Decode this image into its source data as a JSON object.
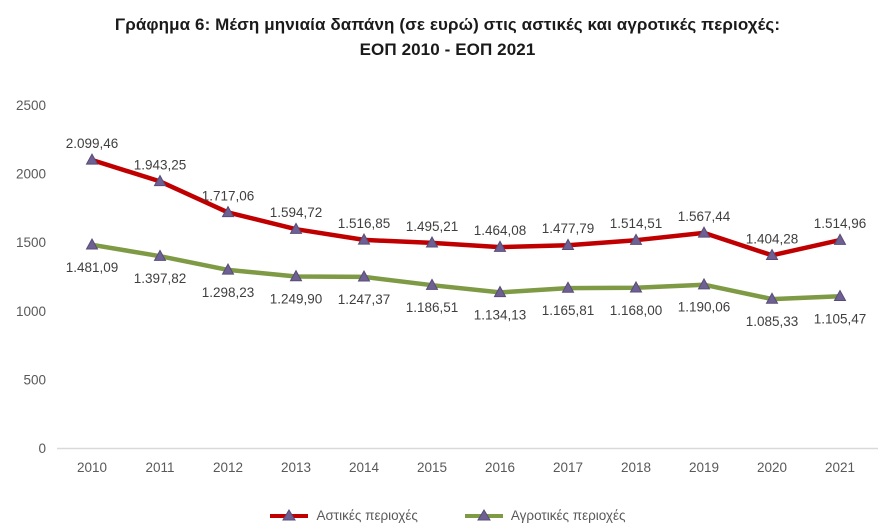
{
  "title": {
    "line1": "Γράφημα 6: Μέση μηνιαία δαπάνη (σε ευρώ) στις αστικές και αγροτικές περιοχές:",
    "line2": "ΕΟΠ 2010 - ΕΟΠ  2021"
  },
  "chart_data": {
    "type": "line",
    "title": "Γράφημα 6: Μέση μηνιαία δαπάνη (σε ευρώ) στις αστικές και αγροτικές περιοχές: ΕΟΠ 2010 - ΕΟΠ 2021",
    "x": [
      "2010",
      "2011",
      "2012",
      "2013",
      "2014",
      "2015",
      "2016",
      "2017",
      "2018",
      "2019",
      "2020",
      "2021"
    ],
    "series": [
      {
        "name": "Αστικές περιοχές",
        "color": "#C00000",
        "values": [
          2099.46,
          1943.25,
          1717.06,
          1594.72,
          1516.85,
          1495.21,
          1464.08,
          1477.79,
          1514.51,
          1567.44,
          1404.28,
          1514.96
        ],
        "labels": [
          "2.099,46",
          "1.943,25",
          "1.717,06",
          "1.594,72",
          "1.516,85",
          "1.495,21",
          "1.464,08",
          "1.477,79",
          "1.514,51",
          "1.567,44",
          "1.404,28",
          "1.514,96"
        ],
        "label_side": "above"
      },
      {
        "name": "Αγροτικές περιοχές",
        "color": "#7E9A45",
        "values": [
          1481.09,
          1397.82,
          1298.23,
          1249.9,
          1247.37,
          1186.51,
          1134.13,
          1165.81,
          1168.0,
          1190.06,
          1085.33,
          1105.47
        ],
        "labels": [
          "1.481,09",
          "1.397,82",
          "1.298,23",
          "1.249,90",
          "1.247,37",
          "1.186,51",
          "1.134,13",
          "1.165,81",
          "1.168,00",
          "1.190,06",
          "1.085,33",
          "1.105,47"
        ],
        "label_side": "below"
      }
    ],
    "marker": {
      "shape": "triangle-up",
      "fill": "#6F6094",
      "stroke": "#584C77"
    },
    "ylim": [
      0,
      2500
    ],
    "yticks": [
      "0",
      "500",
      "1000",
      "1500",
      "2000",
      "2500"
    ],
    "grid": false,
    "legend_position": "bottom"
  },
  "colors": {
    "axis_text": "#595959",
    "data_label_text": "#3F3F3F",
    "axis_line": "#D9D9D9",
    "title_text": "#1a1a1a"
  }
}
